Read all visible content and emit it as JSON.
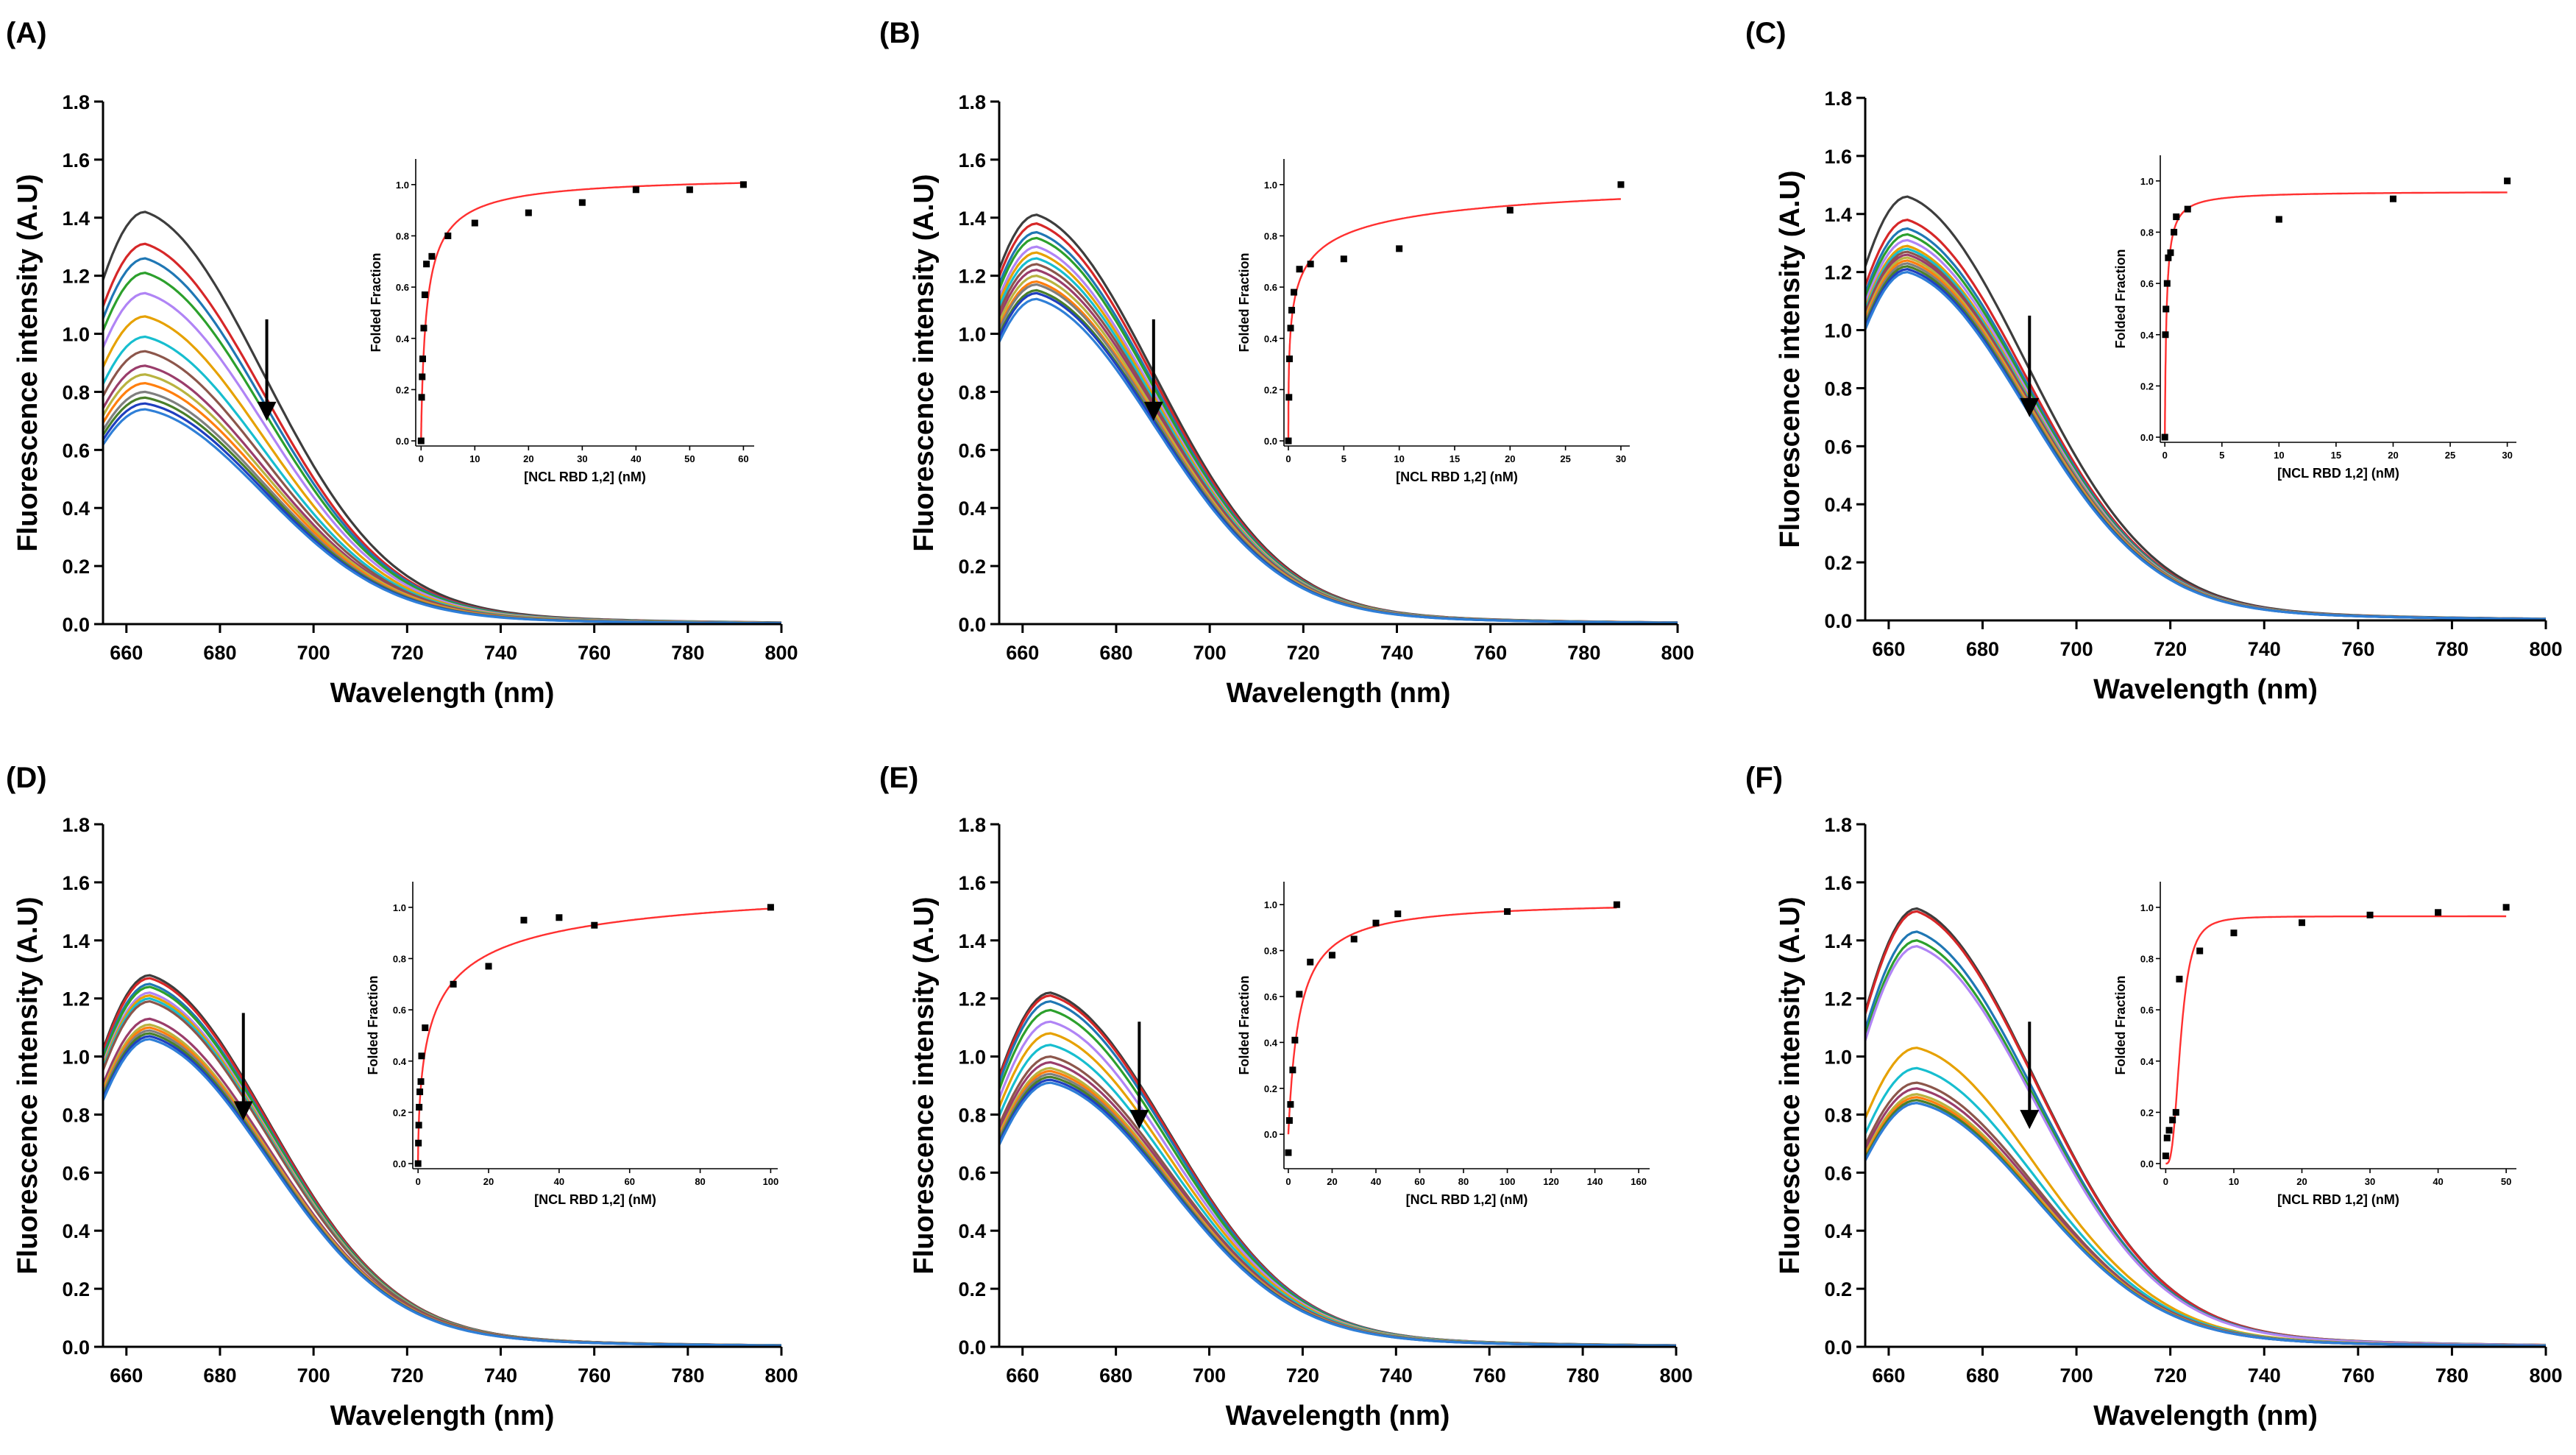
{
  "figure": {
    "series_colors": [
      "#3d3d3d",
      "#d62728",
      "#1f77b4",
      "#2ca02c",
      "#b084f5",
      "#e6a100",
      "#17becf",
      "#8c564b",
      "#9a3d6b",
      "#b9b340",
      "#ff7f0e",
      "#7f7f7f",
      "#4a7f2a",
      "#1f3fbf",
      "#2f7fd7"
    ],
    "fit_color": "#ff3030",
    "marker_color": "#000000",
    "arrow_color": "#000000"
  },
  "chart_data": [
    {
      "panel": "(A)",
      "type": "line",
      "xlabel": "Wavelength (nm)",
      "ylabel": "Fluorescence intensity (A.U)",
      "xlim": [
        655,
        800
      ],
      "ylim": [
        0,
        1.8
      ],
      "xticks": [
        "660",
        "680",
        "700",
        "720",
        "740",
        "760",
        "780",
        "800"
      ],
      "yticks": [
        "0.0",
        "0.2",
        "0.4",
        "0.6",
        "0.8",
        "1.0",
        "1.2",
        "1.4",
        "1.6",
        "1.8"
      ],
      "peak_wavelength": 664,
      "series_peaks": [
        1.42,
        1.31,
        1.26,
        1.21,
        1.14,
        1.06,
        0.99,
        0.94,
        0.89,
        0.86,
        0.83,
        0.8,
        0.78,
        0.76,
        0.74
      ],
      "arrow": {
        "x": 690,
        "y_from": 1.05,
        "y_to": 0.7
      },
      "inset": {
        "type": "scatter",
        "xlabel": "[NCL RBD 1,2] (nM)",
        "ylabel": "Folded Fraction",
        "xlim": [
          -1,
          62
        ],
        "ylim": [
          -0.02,
          1.1
        ],
        "xticks": [
          "0",
          "10",
          "20",
          "30",
          "40",
          "50",
          "60"
        ],
        "yticks": [
          "0.0",
          "0.2",
          "0.4",
          "0.6",
          "0.8",
          "1.0"
        ],
        "points_x": [
          0,
          0.1,
          0.2,
          0.3,
          0.5,
          0.7,
          1,
          2,
          5,
          10,
          20,
          30,
          40,
          50,
          60
        ],
        "points_y": [
          0.0,
          0.17,
          0.25,
          0.32,
          0.44,
          0.57,
          0.69,
          0.72,
          0.8,
          0.85,
          0.89,
          0.93,
          0.98,
          0.98,
          1.0
        ],
        "fit": {
          "a": 1.04,
          "kd": 1.1,
          "n": 0.85
        }
      }
    },
    {
      "panel": "(B)",
      "type": "line",
      "xlabel": "Wavelength (nm)",
      "ylabel": "Fluorescence intensity (A.U)",
      "xlim": [
        655,
        800
      ],
      "ylim": [
        0,
        1.8
      ],
      "xticks": [
        "660",
        "680",
        "700",
        "720",
        "740",
        "760",
        "780",
        "800"
      ],
      "yticks": [
        "0.0",
        "0.2",
        "0.4",
        "0.6",
        "0.8",
        "1.0",
        "1.2",
        "1.4",
        "1.6",
        "1.8"
      ],
      "peak_wavelength": 663,
      "series_peaks": [
        1.41,
        1.38,
        1.35,
        1.33,
        1.3,
        1.28,
        1.26,
        1.24,
        1.22,
        1.2,
        1.18,
        1.17,
        1.15,
        1.14,
        1.12
      ],
      "arrow": {
        "x": 688,
        "y_from": 1.05,
        "y_to": 0.7
      },
      "inset": {
        "type": "scatter",
        "xlabel": "[NCL RBD 1,2] (nM)",
        "ylabel": "Folded Fraction",
        "xlim": [
          -0.4,
          30.8
        ],
        "ylim": [
          -0.02,
          1.1
        ],
        "xticks": [
          "0",
          "5",
          "10",
          "15",
          "20",
          "25",
          "30"
        ],
        "yticks": [
          "0.0",
          "0.2",
          "0.4",
          "0.6",
          "0.8",
          "1.0"
        ],
        "points_x": [
          0,
          0.05,
          0.1,
          0.2,
          0.3,
          0.5,
          1,
          2,
          5,
          10,
          20,
          30
        ],
        "points_y": [
          0.0,
          0.17,
          0.32,
          0.44,
          0.51,
          0.58,
          0.67,
          0.69,
          0.71,
          0.75,
          0.9,
          1.0
        ],
        "fit": {
          "a": 1.1,
          "kd": 0.55,
          "n": 0.45
        }
      }
    },
    {
      "panel": "(C)",
      "type": "line",
      "xlabel": "Wavelength (nm)",
      "ylabel": "Fluorescence intensity (A.U)",
      "xlim": [
        655,
        800
      ],
      "ylim": [
        0,
        1.8
      ],
      "xticks": [
        "660",
        "680",
        "700",
        "720",
        "740",
        "760",
        "780",
        "800"
      ],
      "yticks": [
        "0.0",
        "0.2",
        "0.4",
        "0.6",
        "0.8",
        "1.0",
        "1.2",
        "1.4",
        "1.6",
        "1.8"
      ],
      "peak_wavelength": 664,
      "series_peaks": [
        1.46,
        1.38,
        1.35,
        1.33,
        1.31,
        1.29,
        1.28,
        1.27,
        1.26,
        1.25,
        1.24,
        1.23,
        1.22,
        1.21,
        1.2
      ],
      "arrow": {
        "x": 690,
        "y_from": 1.05,
        "y_to": 0.7
      },
      "inset": {
        "type": "scatter",
        "xlabel": "[NCL RBD 1,2] (nM)",
        "ylabel": "Folded Fraction",
        "xlim": [
          -0.4,
          30.8
        ],
        "ylim": [
          -0.02,
          1.1
        ],
        "xticks": [
          "0",
          "5",
          "10",
          "15",
          "20",
          "25",
          "30"
        ],
        "yticks": [
          "0.0",
          "0.2",
          "0.4",
          "0.6",
          "0.8",
          "1.0"
        ],
        "points_x": [
          0,
          0.05,
          0.1,
          0.2,
          0.3,
          0.5,
          0.8,
          1,
          2,
          10,
          20,
          30
        ],
        "points_y": [
          0.0,
          0.4,
          0.5,
          0.6,
          0.7,
          0.72,
          0.8,
          0.86,
          0.89,
          0.85,
          0.93,
          1.0
        ],
        "fit": {
          "a": 0.96,
          "kd": 0.15,
          "n": 1.0
        }
      }
    },
    {
      "panel": "(D)",
      "type": "line",
      "xlabel": "Wavelength (nm)",
      "ylabel": "Fluorescence intensity (A.U)",
      "xlim": [
        655,
        800
      ],
      "ylim": [
        0,
        1.8
      ],
      "xticks": [
        "660",
        "680",
        "700",
        "720",
        "740",
        "760",
        "780",
        "800"
      ],
      "yticks": [
        "0.0",
        "0.2",
        "0.4",
        "0.6",
        "0.8",
        "1.0",
        "1.2",
        "1.4",
        "1.6",
        "1.8"
      ],
      "peak_wavelength": 665,
      "series_peaks": [
        1.28,
        1.27,
        1.25,
        1.24,
        1.22,
        1.21,
        1.2,
        1.19,
        1.13,
        1.11,
        1.1,
        1.09,
        1.08,
        1.07,
        1.06
      ],
      "arrow": {
        "x": 685,
        "y_from": 1.15,
        "y_to": 0.78
      },
      "inset": {
        "type": "scatter",
        "xlabel": "[NCL RBD 1,2] (nM)",
        "ylabel": "Folded Fraction",
        "xlim": [
          -1.5,
          102
        ],
        "ylim": [
          -0.02,
          1.1
        ],
        "xticks": [
          "0",
          "20",
          "40",
          "60",
          "80",
          "100"
        ],
        "yticks": [
          "0.0",
          "0.2",
          "0.4",
          "0.6",
          "0.8",
          "1.0"
        ],
        "points_x": [
          0,
          0.1,
          0.2,
          0.3,
          0.5,
          0.8,
          1,
          2,
          10,
          20,
          30,
          40,
          50,
          100
        ],
        "points_y": [
          0.0,
          0.08,
          0.15,
          0.22,
          0.28,
          0.32,
          0.42,
          0.53,
          0.7,
          0.77,
          0.95,
          0.96,
          0.93,
          1.0
        ],
        "fit": {
          "a": 1.15,
          "kd": 4.5,
          "n": 0.6
        }
      }
    },
    {
      "panel": "(E)",
      "type": "line",
      "xlabel": "Wavelength (nm)",
      "ylabel": "Fluorescence intensity (A.U)",
      "xlim": [
        655,
        800
      ],
      "ylim": [
        0,
        1.8
      ],
      "xticks": [
        "660",
        "680",
        "700",
        "720",
        "740",
        "760",
        "780",
        "800"
      ],
      "yticks": [
        "0.0",
        "0.2",
        "0.4",
        "0.6",
        "0.8",
        "1.0",
        "1.2",
        "1.4",
        "1.6",
        "1.8"
      ],
      "peak_wavelength": 666,
      "series_peaks": [
        1.22,
        1.21,
        1.19,
        1.16,
        1.12,
        1.08,
        1.04,
        1.0,
        0.98,
        0.96,
        0.95,
        0.94,
        0.93,
        0.92,
        0.91
      ],
      "arrow": {
        "x": 685,
        "y_from": 1.12,
        "y_to": 0.75
      },
      "inset": {
        "type": "scatter",
        "xlabel": "[NCL RBD 1,2] (nM)",
        "ylabel": "Folded Fraction",
        "xlim": [
          -2,
          165
        ],
        "ylim": [
          -0.15,
          1.1
        ],
        "xticks": [
          "0",
          "20",
          "40",
          "60",
          "80",
          "100",
          "120",
          "140",
          "160"
        ],
        "yticks": [
          "0.0",
          "0.2",
          "0.4",
          "0.6",
          "0.8",
          "1.0"
        ],
        "points_x": [
          0,
          0.5,
          1,
          2,
          3,
          5,
          10,
          20,
          30,
          40,
          50,
          100,
          150
        ],
        "points_y": [
          -0.08,
          0.06,
          0.13,
          0.28,
          0.41,
          0.61,
          0.75,
          0.78,
          0.85,
          0.92,
          0.96,
          0.97,
          1.0
        ],
        "fit": {
          "a": 1.02,
          "kd": 5.0,
          "n": 1.0
        }
      }
    },
    {
      "panel": "(F)",
      "type": "line",
      "xlabel": "Wavelength (nm)",
      "ylabel": "Fluorescence intensity (A.U)",
      "xlim": [
        655,
        800
      ],
      "ylim": [
        0,
        1.8
      ],
      "xticks": [
        "660",
        "680",
        "700",
        "720",
        "740",
        "760",
        "780",
        "800"
      ],
      "yticks": [
        "0.0",
        "0.2",
        "0.4",
        "0.6",
        "0.8",
        "1.0",
        "1.2",
        "1.4",
        "1.6",
        "1.8"
      ],
      "peak_wavelength": 666,
      "series_peaks": [
        1.51,
        1.5,
        1.43,
        1.4,
        1.38,
        1.03,
        0.96,
        0.91,
        0.89,
        0.87,
        0.86,
        0.85,
        0.85,
        0.84,
        0.84
      ],
      "arrow": {
        "x": 690,
        "y_from": 1.12,
        "y_to": 0.75
      },
      "inset": {
        "type": "scatter",
        "xlabel": "[NCL RBD 1,2] (nM)",
        "ylabel": "Folded Fraction",
        "xlim": [
          -0.8,
          51.5
        ],
        "ylim": [
          -0.02,
          1.1
        ],
        "xticks": [
          "0",
          "10",
          "20",
          "30",
          "40",
          "50"
        ],
        "yticks": [
          "0.0",
          "0.2",
          "0.4",
          "0.6",
          "0.8",
          "1.0"
        ],
        "points_x": [
          0,
          0.2,
          0.5,
          1,
          1.5,
          2,
          5,
          10,
          20,
          30,
          40,
          50
        ],
        "points_y": [
          0.03,
          0.1,
          0.13,
          0.17,
          0.2,
          0.72,
          0.83,
          0.9,
          0.94,
          0.97,
          0.98,
          1.0
        ],
        "fit": {
          "a": 0.965,
          "kd": 2.2,
          "n": 3.0
        }
      }
    }
  ]
}
